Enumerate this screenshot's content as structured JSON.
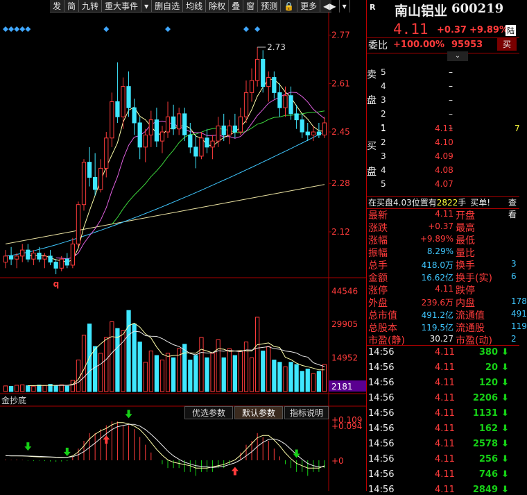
{
  "toolbar": {
    "items": [
      "发",
      "简",
      "九转",
      "重大事件",
      "▾",
      "删自选",
      "均线",
      "除权",
      "叠",
      "窗",
      "预测",
      "🔒",
      "更多",
      "◀▶",
      "▾"
    ]
  },
  "chart_data": {
    "type": "candlestick",
    "price_axis": {
      "ticks": [
        "2.77",
        "2.61",
        "2.45",
        "2.28",
        "2.12"
      ],
      "ylim": [
        1.98,
        2.84
      ]
    },
    "annotations": {
      "high_label": "2.73",
      "low_marker": "q"
    },
    "candles": [
      {
        "o": 2.02,
        "h": 2.06,
        "l": 2.0,
        "c": 2.04
      },
      {
        "o": 2.04,
        "h": 2.07,
        "l": 2.01,
        "c": 2.03
      },
      {
        "o": 2.03,
        "h": 2.05,
        "l": 2.0,
        "c": 2.04
      },
      {
        "o": 2.04,
        "h": 2.08,
        "l": 2.02,
        "c": 2.06
      },
      {
        "o": 2.06,
        "h": 2.08,
        "l": 2.02,
        "c": 2.03
      },
      {
        "o": 2.03,
        "h": 2.06,
        "l": 2.01,
        "c": 2.05
      },
      {
        "o": 2.05,
        "h": 2.07,
        "l": 2.02,
        "c": 2.03
      },
      {
        "o": 2.03,
        "h": 2.05,
        "l": 2.0,
        "c": 2.04
      },
      {
        "o": 2.04,
        "h": 2.06,
        "l": 2.01,
        "c": 2.02
      },
      {
        "o": 2.02,
        "h": 2.03,
        "l": 1.98,
        "c": 2.0
      },
      {
        "o": 2.0,
        "h": 2.04,
        "l": 1.99,
        "c": 2.03
      },
      {
        "o": 2.03,
        "h": 2.05,
        "l": 2.0,
        "c": 2.01
      },
      {
        "o": 2.01,
        "h": 2.1,
        "l": 2.0,
        "c": 2.08
      },
      {
        "o": 2.08,
        "h": 2.22,
        "l": 2.07,
        "c": 2.21
      },
      {
        "o": 2.21,
        "h": 2.36,
        "l": 2.19,
        "c": 2.35
      },
      {
        "o": 2.35,
        "h": 2.4,
        "l": 2.27,
        "c": 2.3
      },
      {
        "o": 2.3,
        "h": 2.38,
        "l": 2.24,
        "c": 2.26
      },
      {
        "o": 2.26,
        "h": 2.36,
        "l": 2.25,
        "c": 2.33
      },
      {
        "o": 2.33,
        "h": 2.45,
        "l": 2.3,
        "c": 2.43
      },
      {
        "o": 2.43,
        "h": 2.58,
        "l": 2.4,
        "c": 2.55
      },
      {
        "o": 2.55,
        "h": 2.68,
        "l": 2.48,
        "c": 2.5
      },
      {
        "o": 2.5,
        "h": 2.63,
        "l": 2.46,
        "c": 2.6
      },
      {
        "o": 2.6,
        "h": 2.65,
        "l": 2.5,
        "c": 2.53
      },
      {
        "o": 2.53,
        "h": 2.56,
        "l": 2.44,
        "c": 2.48
      },
      {
        "o": 2.48,
        "h": 2.5,
        "l": 2.36,
        "c": 2.4
      },
      {
        "o": 2.4,
        "h": 2.46,
        "l": 2.35,
        "c": 2.44
      },
      {
        "o": 2.44,
        "h": 2.52,
        "l": 2.4,
        "c": 2.49
      },
      {
        "o": 2.49,
        "h": 2.53,
        "l": 2.4,
        "c": 2.42
      },
      {
        "o": 2.42,
        "h": 2.47,
        "l": 2.38,
        "c": 2.45
      },
      {
        "o": 2.45,
        "h": 2.55,
        "l": 2.43,
        "c": 2.5
      },
      {
        "o": 2.5,
        "h": 2.54,
        "l": 2.44,
        "c": 2.46
      },
      {
        "o": 2.46,
        "h": 2.53,
        "l": 2.44,
        "c": 2.51
      },
      {
        "o": 2.51,
        "h": 2.53,
        "l": 2.42,
        "c": 2.44
      },
      {
        "o": 2.44,
        "h": 2.48,
        "l": 2.38,
        "c": 2.4
      },
      {
        "o": 2.4,
        "h": 2.44,
        "l": 2.33,
        "c": 2.37
      },
      {
        "o": 2.37,
        "h": 2.45,
        "l": 2.36,
        "c": 2.43
      },
      {
        "o": 2.43,
        "h": 2.46,
        "l": 2.38,
        "c": 2.4
      },
      {
        "o": 2.4,
        "h": 2.44,
        "l": 2.36,
        "c": 2.42
      },
      {
        "o": 2.42,
        "h": 2.5,
        "l": 2.4,
        "c": 2.47
      },
      {
        "o": 2.47,
        "h": 2.51,
        "l": 2.42,
        "c": 2.44
      },
      {
        "o": 2.44,
        "h": 2.49,
        "l": 2.41,
        "c": 2.47
      },
      {
        "o": 2.47,
        "h": 2.51,
        "l": 2.43,
        "c": 2.45
      },
      {
        "o": 2.45,
        "h": 2.53,
        "l": 2.44,
        "c": 2.5
      },
      {
        "o": 2.5,
        "h": 2.62,
        "l": 2.48,
        "c": 2.58
      },
      {
        "o": 2.58,
        "h": 2.66,
        "l": 2.55,
        "c": 2.62
      },
      {
        "o": 2.62,
        "h": 2.73,
        "l": 2.6,
        "c": 2.69
      },
      {
        "o": 2.69,
        "h": 2.72,
        "l": 2.58,
        "c": 2.6
      },
      {
        "o": 2.6,
        "h": 2.65,
        "l": 2.55,
        "c": 2.63
      },
      {
        "o": 2.63,
        "h": 2.65,
        "l": 2.56,
        "c": 2.58
      },
      {
        "o": 2.58,
        "h": 2.61,
        "l": 2.5,
        "c": 2.53
      },
      {
        "o": 2.53,
        "h": 2.6,
        "l": 2.5,
        "c": 2.57
      },
      {
        "o": 2.57,
        "h": 2.6,
        "l": 2.49,
        "c": 2.51
      },
      {
        "o": 2.51,
        "h": 2.54,
        "l": 2.46,
        "c": 2.49
      },
      {
        "o": 2.49,
        "h": 2.51,
        "l": 2.43,
        "c": 2.45
      },
      {
        "o": 2.45,
        "h": 2.48,
        "l": 2.42,
        "c": 2.44
      },
      {
        "o": 2.44,
        "h": 2.47,
        "l": 2.42,
        "c": 2.45
      },
      {
        "o": 2.45,
        "h": 2.48,
        "l": 2.43,
        "c": 2.44
      },
      {
        "o": 2.44,
        "h": 2.5,
        "l": 2.43,
        "c": 2.48
      }
    ],
    "volume_axis": {
      "ticks": [
        "44546",
        "29905",
        "14952"
      ],
      "ylim": [
        0,
        49000
      ],
      "current": "2181"
    },
    "volumes": [
      2500,
      2300,
      2800,
      3000,
      2600,
      2400,
      2900,
      2700,
      3200,
      2500,
      3000,
      2400,
      5000,
      14000,
      25000,
      30000,
      20000,
      17000,
      24000,
      31000,
      28000,
      27000,
      36000,
      30000,
      22000,
      13000,
      18000,
      16000,
      14000,
      17000,
      15000,
      19000,
      21000,
      14000,
      16000,
      24000,
      15000,
      17000,
      23000,
      15000,
      19000,
      16000,
      18000,
      22000,
      15000,
      33000,
      18000,
      20000,
      14000,
      13000,
      11000,
      13000,
      12000,
      9000,
      10000,
      8000,
      9000,
      12000
    ],
    "macd_axis": {
      "ticks": [
        "+0.109",
        "+0.094",
        "+0"
      ]
    },
    "macd_hist": [
      0.002,
      0.001,
      0.002,
      0.001,
      -0.001,
      -0.002,
      -0.001,
      -0.002,
      -0.003,
      -0.004,
      -0.003,
      -0.002,
      0.01,
      0.03,
      0.05,
      0.07,
      0.07,
      0.08,
      0.09,
      0.1,
      0.1,
      0.09,
      0.09,
      0.08,
      0.06,
      0.04,
      0.02,
      0.0,
      -0.01,
      -0.02,
      -0.02,
      -0.02,
      -0.03,
      -0.03,
      -0.04,
      -0.03,
      -0.03,
      -0.03,
      -0.02,
      -0.02,
      -0.01,
      0.0,
      0.02,
      0.04,
      0.05,
      0.07,
      0.06,
      0.05,
      0.03,
      0.01,
      -0.01,
      -0.02,
      -0.03,
      -0.03,
      -0.04,
      -0.03,
      -0.03,
      -0.02
    ],
    "indicator_label": "金抄底",
    "indicator_tabs": [
      "优选参数",
      "默认参数",
      "指标说明"
    ]
  },
  "quote": {
    "badge": "R",
    "name": "南山铝业",
    "code": "600219",
    "price": "4.11",
    "change": "+0.37",
    "pct": "+9.89%",
    "market": "陆",
    "weibi_label": "委比",
    "weibi": "+100.00%",
    "weicha": "95953",
    "buy_button": "买",
    "sell_label": [
      "卖",
      "盘"
    ],
    "buy_label": [
      "买",
      "盘"
    ],
    "asks": [
      {
        "lvl": "5",
        "price": "",
        "vol": "–"
      },
      {
        "lvl": "4",
        "price": "",
        "vol": "–"
      },
      {
        "lvl": "3",
        "price": "",
        "vol": "–"
      },
      {
        "lvl": "2",
        "price": "",
        "vol": "–"
      },
      {
        "lvl": "1",
        "price": "",
        "vol": "–"
      }
    ],
    "bids": [
      {
        "lvl": "1",
        "price": "4.11",
        "vol": "7"
      },
      {
        "lvl": "2",
        "price": "4.10",
        "vol": ""
      },
      {
        "lvl": "3",
        "price": "4.09",
        "vol": ""
      },
      {
        "lvl": "4",
        "price": "4.08",
        "vol": ""
      },
      {
        "lvl": "5",
        "price": "4.07",
        "vol": ""
      }
    ],
    "queue": {
      "text1": "在买盘4.03位置有",
      "count": "2822",
      "unit": "手",
      "text2": "买单!",
      "link": "查看"
    },
    "stats": [
      {
        "l1": "最新",
        "v1": "4.11",
        "l2": "开盘",
        "v2": ""
      },
      {
        "l1": "涨跌",
        "v1": "+0.37",
        "l2": "最高",
        "v2": ""
      },
      {
        "l1": "涨幅",
        "v1": "+9.89%",
        "l2": "最低",
        "v2": ""
      },
      {
        "l1": "振幅",
        "v1": "8.29%",
        "l2": "量比",
        "v2": ""
      },
      {
        "l1": "总手",
        "v1": "418.0万",
        "l2": "换手",
        "v2": "3"
      },
      {
        "l1": "金额",
        "v1": "16.62亿",
        "l2": "换手(实)",
        "v2": "6"
      },
      {
        "l1": "涨停",
        "v1": "4.11",
        "l2": "跌停",
        "v2": ""
      },
      {
        "l1": "外盘",
        "v1": "239.6万",
        "l2": "内盘",
        "v2": "178"
      },
      {
        "l1": "总市值",
        "v1": "491.2亿",
        "l2": "流通值",
        "v2": "491"
      },
      {
        "l1": "总股本",
        "v1": "119.5亿",
        "l2": "流通股",
        "v2": "119"
      },
      {
        "l1": "市盈(静)",
        "v1": "30.27",
        "l2": "市盈(动)",
        "v2": "2"
      }
    ],
    "ticks": [
      {
        "t": "14:56",
        "p": "4.11",
        "v": "380"
      },
      {
        "t": "14:56",
        "p": "4.11",
        "v": "20"
      },
      {
        "t": "14:56",
        "p": "4.11",
        "v": "120"
      },
      {
        "t": "14:56",
        "p": "4.11",
        "v": "2206"
      },
      {
        "t": "14:56",
        "p": "4.11",
        "v": "1131"
      },
      {
        "t": "14:56",
        "p": "4.11",
        "v": "162"
      },
      {
        "t": "14:56",
        "p": "4.11",
        "v": "2578"
      },
      {
        "t": "14:56",
        "p": "4.11",
        "v": "256"
      },
      {
        "t": "14:56",
        "p": "4.11",
        "v": "746"
      },
      {
        "t": "14:56",
        "p": "4.11",
        "v": "2849"
      }
    ]
  },
  "colors": {
    "up": "#ff3b3b",
    "down": "#3fe7ff",
    "bg": "#000000",
    "grid": "#aa0000"
  }
}
